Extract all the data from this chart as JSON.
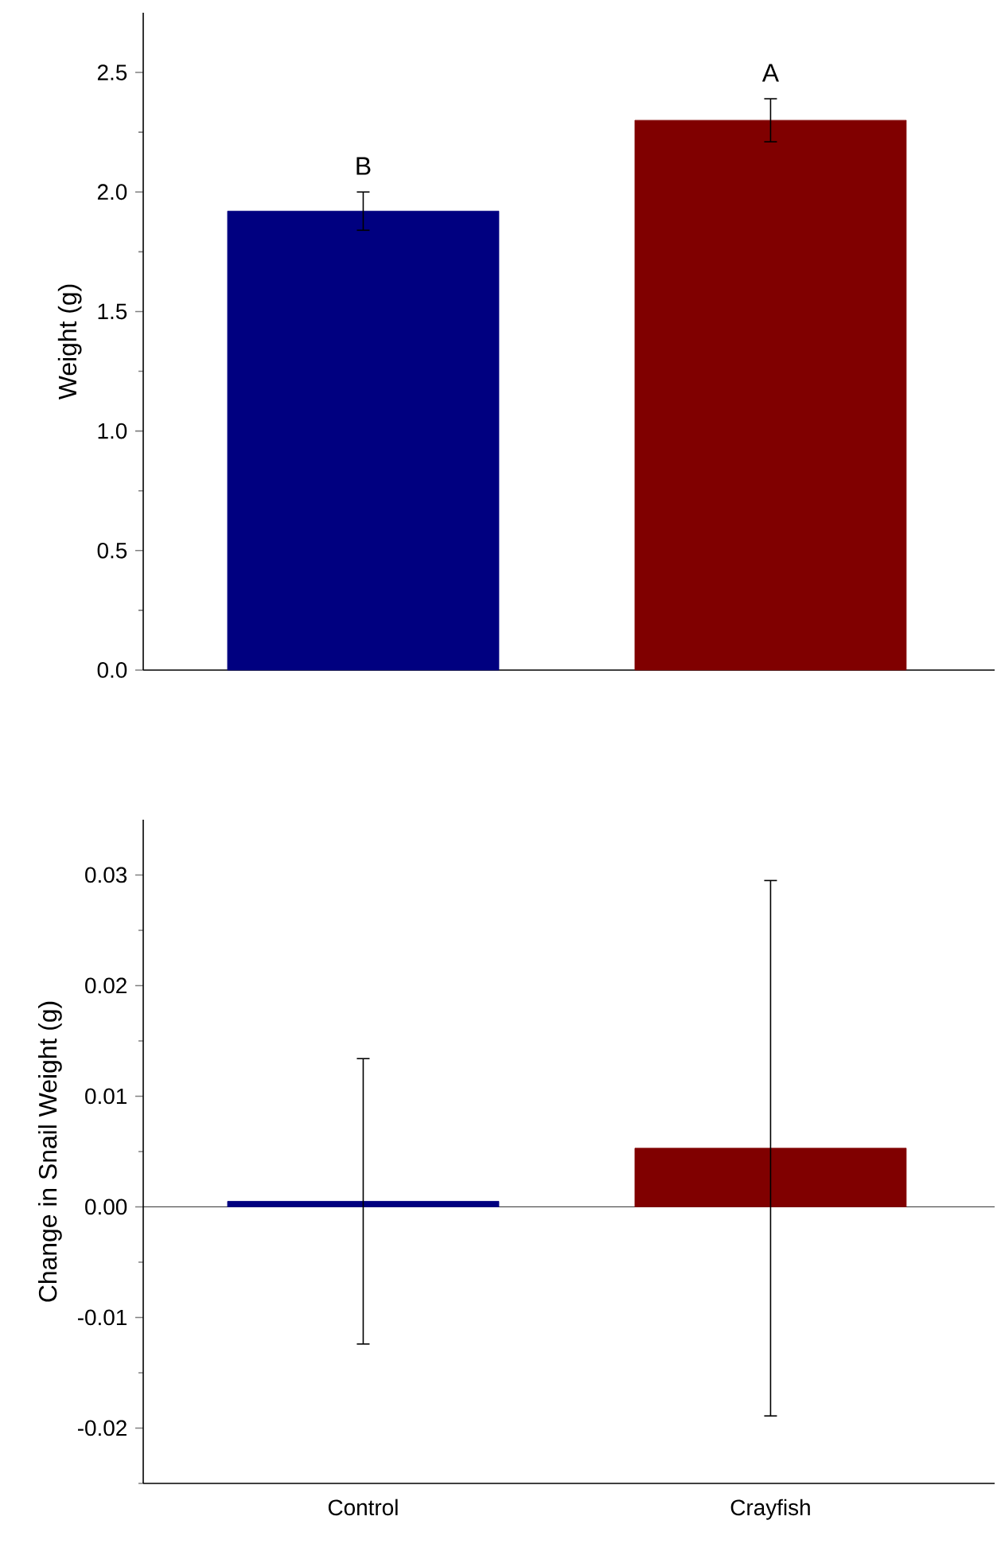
{
  "chart_data": [
    {
      "type": "bar",
      "ylabel": "Weight (g)",
      "categories": [
        null,
        null
      ],
      "values": [
        1.92,
        2.3
      ],
      "colors": [
        "#000080",
        "#800000"
      ],
      "errors": [
        0.08,
        0.09
      ],
      "ylim": [
        0,
        2.75
      ],
      "yticks": [
        {
          "value": 0,
          "label": "0.0"
        },
        {
          "value": 0.25,
          "label": null
        },
        0.5,
        {
          "value": 0.75,
          "label": null
        },
        {
          "value": 1,
          "label": "1.0"
        },
        {
          "value": 1.25,
          "label": null
        },
        1.5,
        {
          "value": 1.75,
          "label": null
        },
        {
          "value": 2,
          "label": "2.0"
        },
        {
          "value": 2.25,
          "label": null
        },
        2.5
      ],
      "annotations": [
        "B",
        "A"
      ],
      "tick_labels": "y"
    },
    {
      "type": "bar",
      "ylabel": "Change in Snail Weight (g)",
      "categories": [
        "Control",
        "Crayfish"
      ],
      "values": [
        0.0005,
        0.0053
      ],
      "colors": [
        "#000080",
        "#800000"
      ],
      "errors": [
        0.0129,
        0.0242
      ],
      "ylim": [
        -0.025,
        0.035
      ],
      "yticks": [
        {
          "value": -0.025,
          "label": null
        },
        -0.02,
        {
          "value": -0.015,
          "label": null
        },
        -0.01,
        {
          "value": -0.005,
          "label": null
        },
        {
          "value": 0,
          "label": "0.00"
        },
        {
          "value": 0.005,
          "label": null
        },
        0.01,
        {
          "value": 0.015,
          "label": null
        },
        0.02,
        {
          "value": 0.025,
          "label": null
        },
        0.03
      ]
    }
  ]
}
